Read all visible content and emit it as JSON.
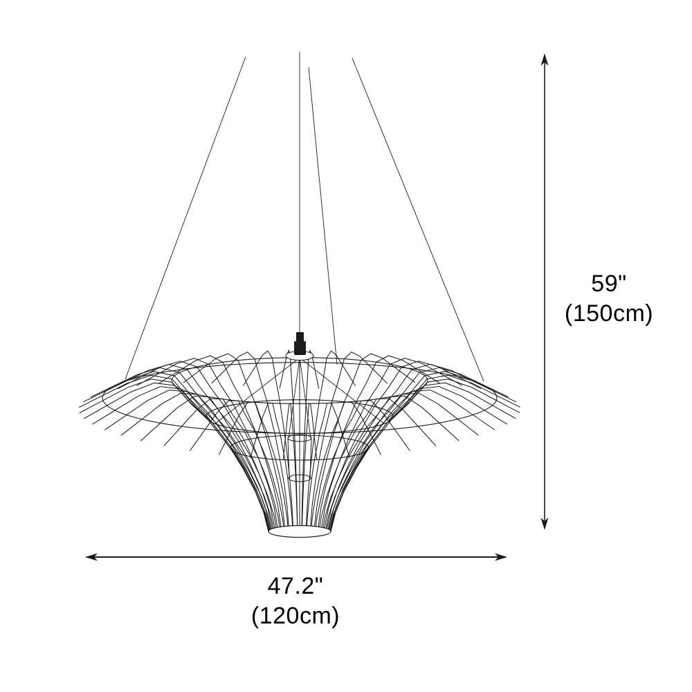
{
  "canvas": {
    "background": "#ffffff",
    "line_color": "#1b1b1b",
    "text_color": "#000000"
  },
  "dimensions": {
    "height": {
      "inches": "59\"",
      "metric": "(150cm)"
    },
    "width": {
      "inches": "47.2\"",
      "metric": "(120cm)"
    }
  }
}
